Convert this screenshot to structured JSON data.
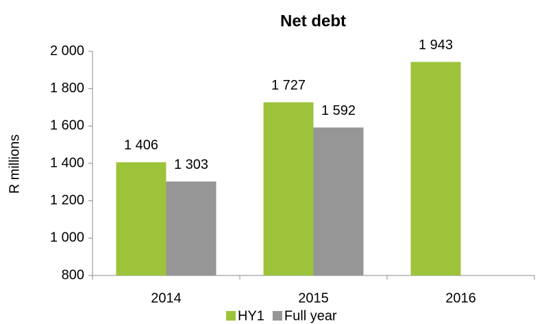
{
  "chart_data": {
    "type": "bar",
    "title": "Net debt",
    "y_label": "R millions",
    "categories": [
      "2014",
      "2015",
      "2016"
    ],
    "series": [
      {
        "name": "HY1",
        "color": "#9dc33b",
        "values": [
          1406,
          1727,
          1943
        ],
        "value_labels": [
          "1 406",
          "1 727",
          "1 943"
        ]
      },
      {
        "name": "Full year",
        "color": "#969696",
        "values": [
          1303,
          1592,
          null
        ],
        "value_labels": [
          "1 303",
          "1 592",
          null
        ]
      }
    ],
    "ylim": [
      800,
      2000
    ],
    "yticks": [
      {
        "value": 800,
        "label": "800"
      },
      {
        "value": 1000,
        "label": "1 000"
      },
      {
        "value": 1200,
        "label": "1 200"
      },
      {
        "value": 1400,
        "label": "1 400"
      },
      {
        "value": 1600,
        "label": "1 600"
      },
      {
        "value": 1800,
        "label": "1 800"
      },
      {
        "value": 2000,
        "label": "2 000"
      }
    ],
    "grid": false,
    "legend": "bottom"
  }
}
